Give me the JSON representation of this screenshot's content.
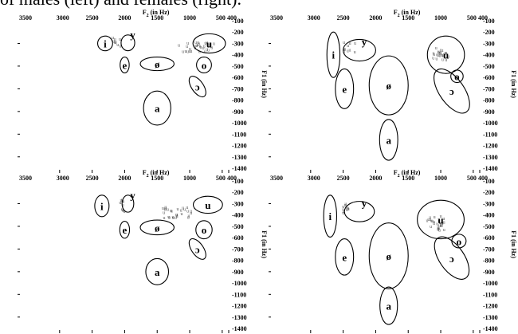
{
  "caption": "of males (left) and females (right).",
  "chart_data": [
    {
      "type": "scatter",
      "panel": "top-left",
      "xlabel": "F2 (in Hz)",
      "ylabel": "",
      "x_axis": "reversed, top",
      "y_axis": "reversed, right",
      "xlim": [
        3500,
        400
      ],
      "ylim": [
        100,
        1400
      ],
      "x_ticks": [
        "3500",
        "3000",
        "2500",
        "2000",
        "1500",
        "1000",
        "500",
        "400"
      ],
      "y_ticks": [
        "100",
        "200",
        "300",
        "400",
        "500",
        "600",
        "700",
        "800",
        "900",
        "1000",
        "1100",
        "1200",
        "1300",
        "1400"
      ],
      "vowels": [
        {
          "label": "i",
          "F2": 2300,
          "F1": 300,
          "w": 230,
          "h": 130
        },
        {
          "label": "y",
          "F2": 1950,
          "F1": 295,
          "w": 210,
          "h": 140
        },
        {
          "label": "e",
          "F2": 2000,
          "F1": 490,
          "w": 140,
          "h": 140
        },
        {
          "label": "ø",
          "F2": 1500,
          "F1": 480,
          "w": 520,
          "h": 120
        },
        {
          "label": "u",
          "F2": 700,
          "F1": 300,
          "w": 500,
          "h": 170
        },
        {
          "label": "o",
          "F2": 780,
          "F1": 490,
          "w": 230,
          "h": 140
        },
        {
          "label": "ɔ",
          "F2": 880,
          "F1": 680,
          "w": 180,
          "h": 210
        },
        {
          "label": "a",
          "F2": 1500,
          "F1": 870,
          "w": 420,
          "h": 300
        }
      ],
      "clusters": [
        {
          "label": "u",
          "F2": 2150,
          "F1": 300,
          "n": 8,
          "sx": 100,
          "sy": 45
        },
        {
          "label": "u",
          "F2": 900,
          "F1": 345,
          "n": 30,
          "sx": 280,
          "sy": 45
        }
      ]
    },
    {
      "type": "scatter",
      "panel": "top-right",
      "xlabel": "F2 (in Hz)",
      "ylabel": "F1 (in Hz)",
      "x_axis": "reversed, top",
      "y_axis": "reversed, right",
      "xlim": [
        3500,
        400
      ],
      "ylim": [
        100,
        1400
      ],
      "x_ticks": [
        "3500",
        "3000",
        "2500",
        "2000",
        "1500",
        "1000",
        "500",
        "400"
      ],
      "y_ticks": [
        "100",
        "200",
        "300",
        "400",
        "500",
        "600",
        "700",
        "800",
        "900",
        "1000",
        "1100",
        "1200",
        "1300",
        "1400"
      ],
      "vowels": [
        {
          "label": "i",
          "F2": 2650,
          "F1": 400,
          "w": 200,
          "h": 400
        },
        {
          "label": "y",
          "F2": 2250,
          "F1": 360,
          "w": 500,
          "h": 190
        },
        {
          "label": "e",
          "F2": 2480,
          "F1": 700,
          "w": 280,
          "h": 350
        },
        {
          "label": "ø",
          "F2": 1800,
          "F1": 670,
          "w": 600,
          "h": 520
        },
        {
          "label": "u",
          "F2": 920,
          "F1": 400,
          "w": 570,
          "h": 330
        },
        {
          "label": "o",
          "F2": 750,
          "F1": 590,
          "w": 190,
          "h": 110
        },
        {
          "label": "ɔ",
          "F2": 830,
          "F1": 720,
          "w": 380,
          "h": 450
        },
        {
          "label": "a",
          "F2": 1800,
          "F1": 1150,
          "w": 280,
          "h": 360
        }
      ],
      "clusters": [
        {
          "label": "u",
          "F2": 2400,
          "F1": 350,
          "n": 10,
          "sx": 90,
          "sy": 55
        },
        {
          "label": "u",
          "F2": 1000,
          "F1": 410,
          "n": 22,
          "sx": 120,
          "sy": 60
        }
      ]
    },
    {
      "type": "scatter",
      "panel": "bottom-left",
      "xlabel": "F2 (in Hz)",
      "ylabel": "",
      "x_axis": "reversed, top",
      "y_axis": "reversed, right",
      "xlim": [
        3500,
        400
      ],
      "ylim": [
        100,
        1400
      ],
      "x_ticks": [
        "3500",
        "3000",
        "2500",
        "2000",
        "1500",
        "1000",
        "500",
        "400"
      ],
      "y_ticks": [
        "100",
        "200",
        "300",
        "400",
        "500",
        "600",
        "700",
        "800",
        "900",
        "1000",
        "1100",
        "1200",
        "1300",
        "1400"
      ],
      "vowels": [
        {
          "label": "i",
          "F2": 2350,
          "F1": 320,
          "w": 220,
          "h": 190
        },
        {
          "label": "y",
          "F2": 1950,
          "F1": 300,
          "w": 180,
          "h": 150
        },
        {
          "label": "e",
          "F2": 2000,
          "F1": 530,
          "w": 150,
          "h": 150
        },
        {
          "label": "ø",
          "F2": 1500,
          "F1": 510,
          "w": 520,
          "h": 130
        },
        {
          "label": "u",
          "F2": 720,
          "F1": 310,
          "w": 450,
          "h": 150
        },
        {
          "label": "o",
          "F2": 780,
          "F1": 530,
          "w": 250,
          "h": 160
        },
        {
          "label": "ɔ",
          "F2": 880,
          "F1": 700,
          "w": 180,
          "h": 210
        },
        {
          "label": "a",
          "F2": 1500,
          "F1": 900,
          "w": 350,
          "h": 230
        }
      ],
      "clusters": [
        {
          "label": "u",
          "F2": 2040,
          "F1": 330,
          "n": 10,
          "sx": 35,
          "sy": 70
        },
        {
          "label": "u",
          "F2": 1200,
          "F1": 390,
          "n": 28,
          "sx": 250,
          "sy": 50
        }
      ]
    },
    {
      "type": "scatter",
      "panel": "bottom-right",
      "xlabel": "F2 (in Hz)",
      "ylabel": "F1 (in Hz)",
      "x_axis": "reversed, top",
      "y_axis": "reversed, right",
      "xlim": [
        3500,
        400
      ],
      "ylim": [
        100,
        1400
      ],
      "x_ticks": [
        "3500",
        "3000",
        "2500",
        "2000",
        "1500",
        "1000",
        "500",
        "400"
      ],
      "y_ticks": [
        "100",
        "200",
        "300",
        "400",
        "500",
        "600",
        "700",
        "800",
        "900",
        "1000",
        "1100",
        "1200",
        "1300",
        "1400"
      ],
      "vowels": [
        {
          "label": "i",
          "F2": 2700,
          "F1": 410,
          "w": 200,
          "h": 370
        },
        {
          "label": "y",
          "F2": 2250,
          "F1": 370,
          "w": 460,
          "h": 180
        },
        {
          "label": "e",
          "F2": 2480,
          "F1": 770,
          "w": 280,
          "h": 320
        },
        {
          "label": "ø",
          "F2": 1800,
          "F1": 760,
          "w": 600,
          "h": 580
        },
        {
          "label": "u",
          "F2": 1000,
          "F1": 440,
          "w": 720,
          "h": 340
        },
        {
          "label": "o",
          "F2": 720,
          "F1": 630,
          "w": 220,
          "h": 120
        },
        {
          "label": "ɔ",
          "F2": 830,
          "F1": 780,
          "w": 380,
          "h": 430
        },
        {
          "label": "a",
          "F2": 1800,
          "F1": 1200,
          "w": 270,
          "h": 330
        }
      ],
      "clusters": [
        {
          "label": "u",
          "F2": 2450,
          "F1": 360,
          "n": 10,
          "sx": 80,
          "sy": 45
        },
        {
          "label": "u",
          "F2": 1080,
          "F1": 480,
          "n": 26,
          "sx": 140,
          "sy": 70
        }
      ]
    }
  ]
}
